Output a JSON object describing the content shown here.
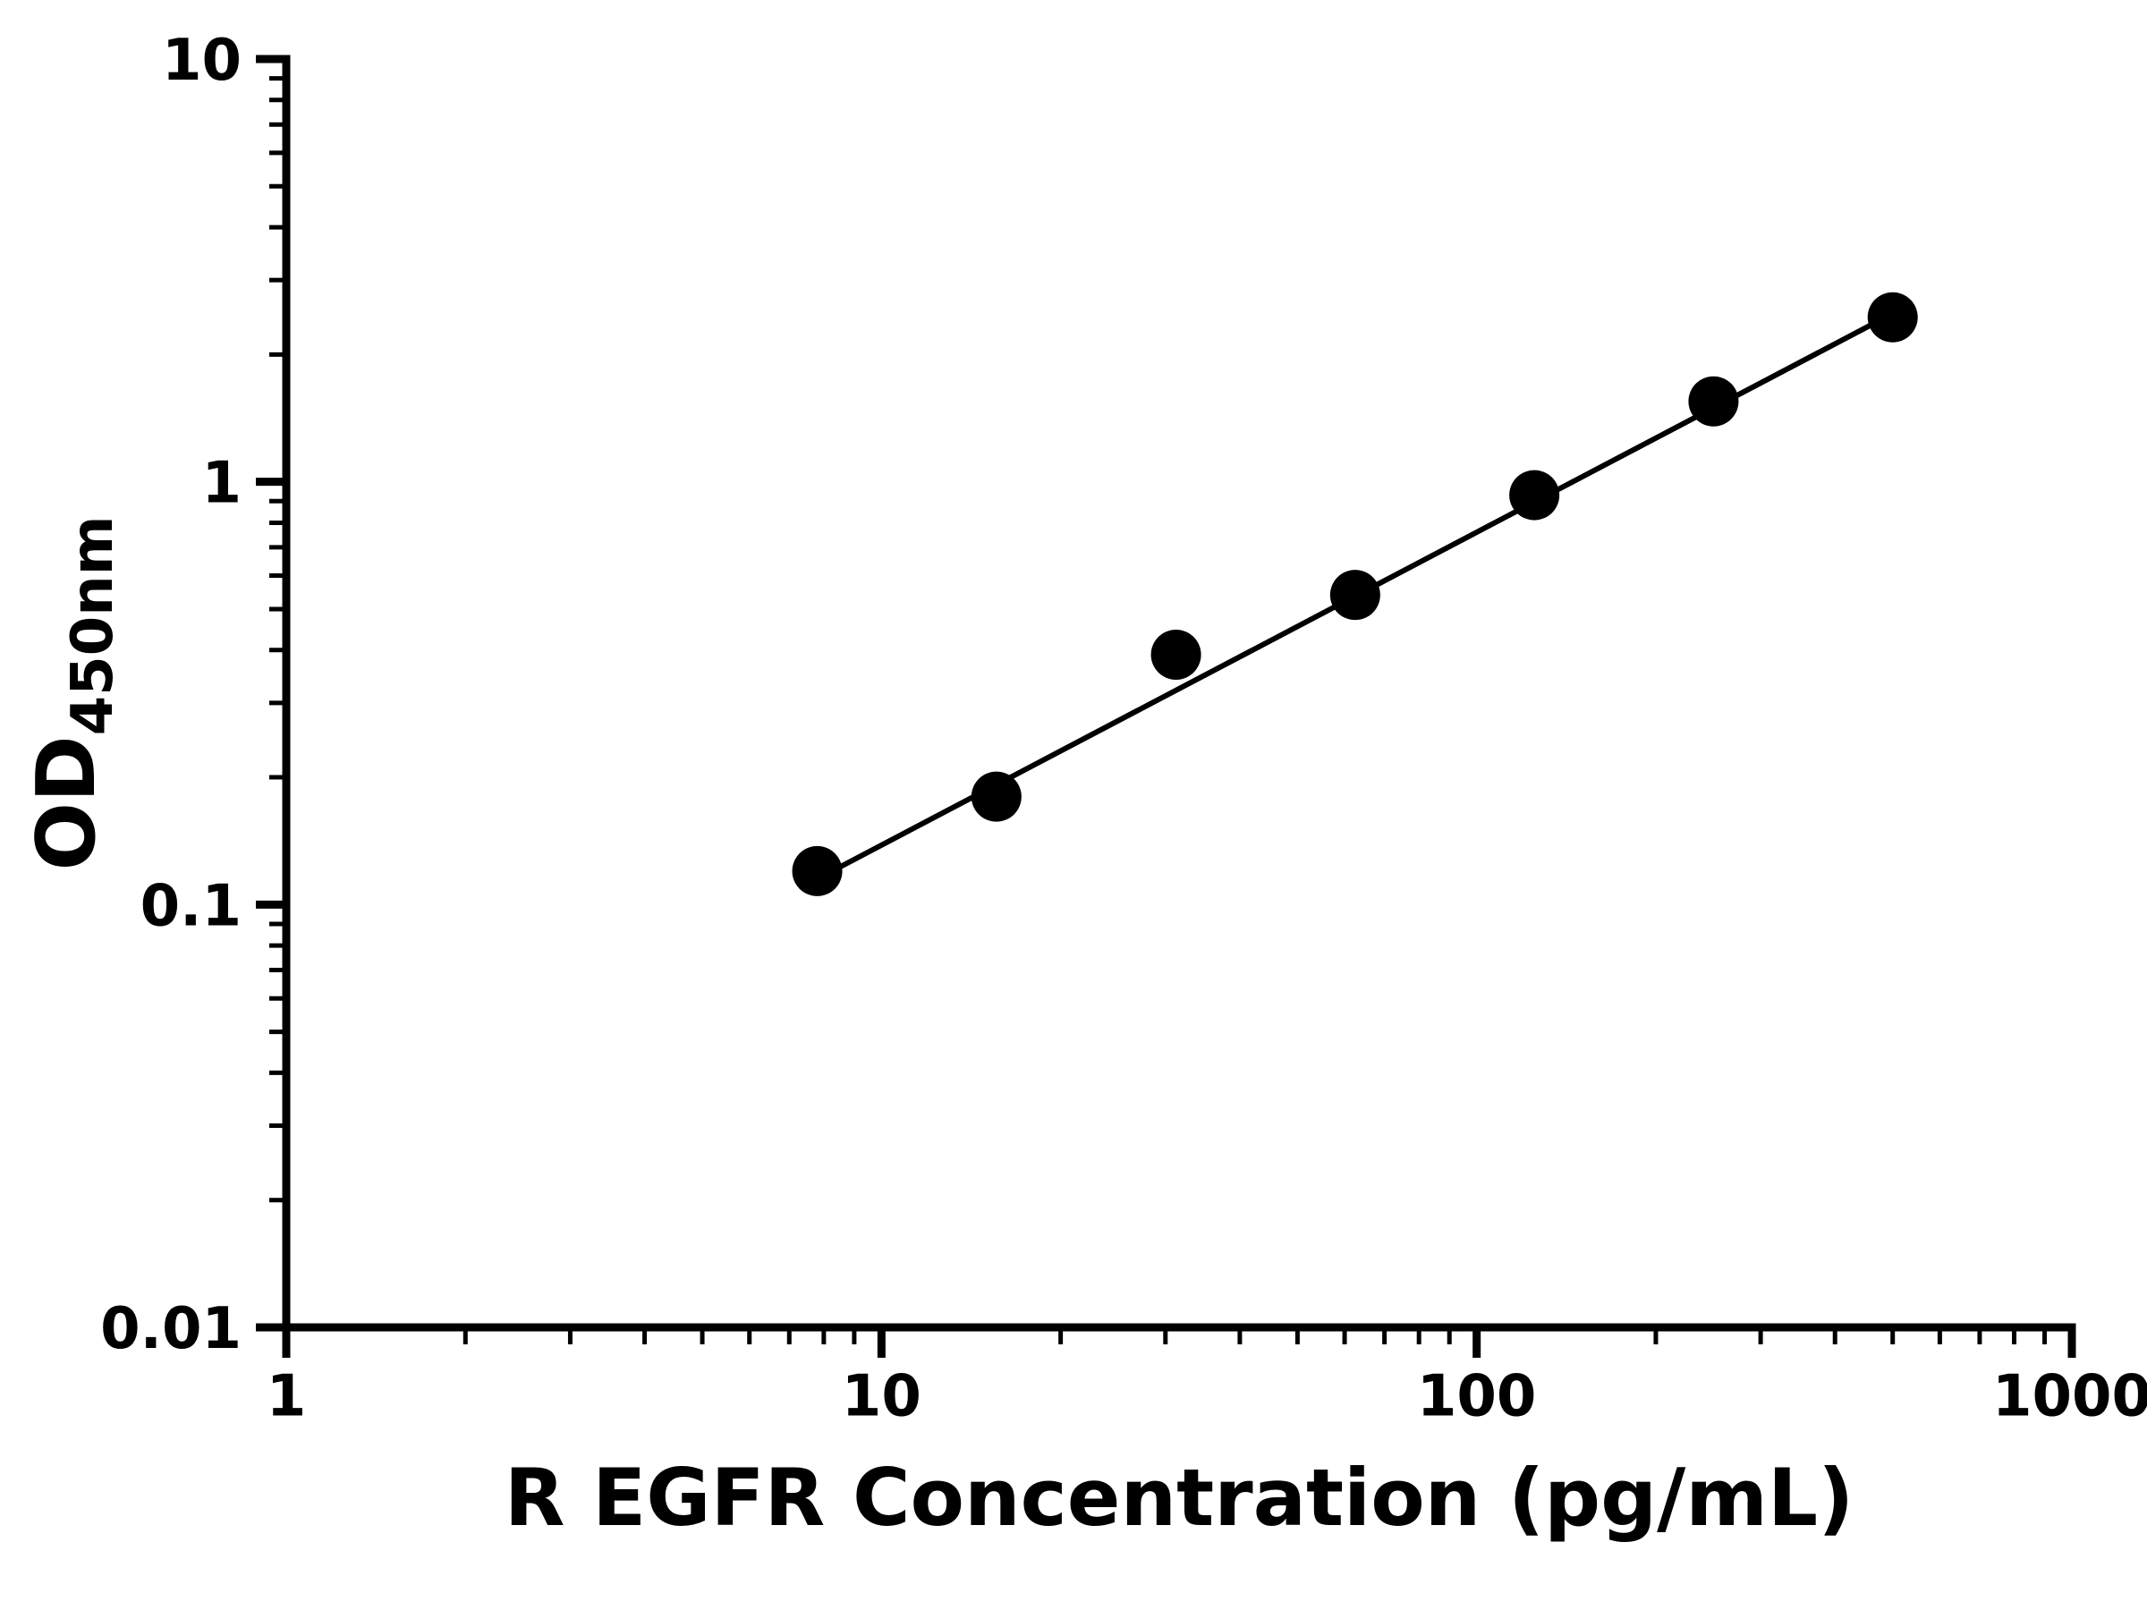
{
  "chart_data": {
    "type": "scatter",
    "title": "",
    "xlabel": "R EGFR Concentration (pg/mL)",
    "ylabel_main": "OD",
    "ylabel_sub": "450nm",
    "x_scale": "log",
    "y_scale": "log",
    "xlim": [
      1,
      1000
    ],
    "ylim": [
      0.01,
      10
    ],
    "x_major_ticks": [
      1,
      10,
      100,
      1000
    ],
    "x_tick_labels": [
      "1",
      "10",
      "100",
      "1000"
    ],
    "y_major_ticks": [
      0.01,
      0.1,
      1,
      10
    ],
    "y_tick_labels": [
      "0.01",
      "0.1",
      "1",
      "10"
    ],
    "points": [
      {
        "x": 7.8,
        "y": 0.12
      },
      {
        "x": 15.6,
        "y": 0.18
      },
      {
        "x": 31.25,
        "y": 0.39
      },
      {
        "x": 62.5,
        "y": 0.54
      },
      {
        "x": 125,
        "y": 0.93
      },
      {
        "x": 250,
        "y": 1.55
      },
      {
        "x": 500,
        "y": 2.45
      }
    ],
    "trend_line": {
      "x1": 7.8,
      "y1": 0.115,
      "x2": 500,
      "y2": 2.5
    },
    "marker_color": "#000000",
    "line_color": "#000000",
    "axis_color": "#000000",
    "background_color": "#ffffff",
    "grid": false,
    "legend": "none"
  }
}
